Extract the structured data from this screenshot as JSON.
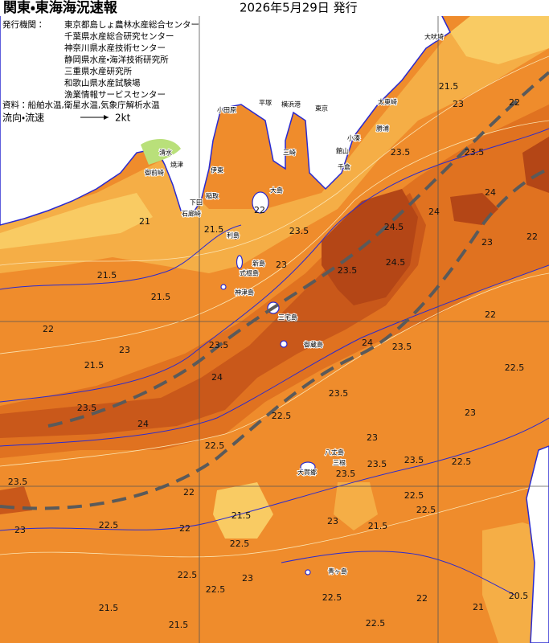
{
  "header": {
    "title": "関東・東海海況速報",
    "date": "2026年5月29日 発行"
  },
  "issuers": {
    "label": "発行機関：",
    "names": [
      "東京都島しょ農林水産総合センター",
      "千葉県水産総合研究センター",
      "神奈川県水産技術センター",
      "静岡県水産・海洋技術研究所",
      "三重県水産研究所",
      "和歌山県水産試験場",
      "漁業情報サービスセンター"
    ]
  },
  "source": "資料：船舶水温,衛星水温,気象庁解析水温",
  "legend": {
    "label": "流向・流速",
    "speed": "2kt"
  },
  "places": [
    "大吠埼",
    "太東崎",
    "勝浦",
    "小湊",
    "館山",
    "千倉",
    "東京",
    "横浜港",
    "三崎",
    "平塚",
    "小田原",
    "伊東",
    "稲取",
    "下田",
    "石廊崎",
    "焼津",
    "清水",
    "御前崎",
    "大島",
    "利島",
    "新島",
    "式根島",
    "神津島",
    "三宅島",
    "御蔵島",
    "八丈島",
    "三根",
    "大賀郷",
    "青ヶ島"
  ],
  "contour_labels": [
    "21.5",
    "23",
    "22",
    "23.5",
    "23.5",
    "24",
    "22",
    "21",
    "21.5",
    "22",
    "23",
    "23.5",
    "24.5",
    "24",
    "24.5",
    "23.5",
    "23",
    "21.5",
    "21.5",
    "22",
    "23",
    "23.5",
    "24",
    "24",
    "23.5",
    "22",
    "21.5",
    "22.5",
    "23.5",
    "24",
    "22.5",
    "23",
    "23.5",
    "22.5",
    "22",
    "23.5",
    "23",
    "22.5",
    "22.5",
    "23",
    "23.5",
    "23.5",
    "22.5",
    "22",
    "22.5",
    "23",
    "22.5",
    "21.5",
    "22.5",
    "21.5",
    "22.5",
    "21.5",
    "22.5",
    "21",
    "20.5",
    "22",
    "23",
    "23.5",
    "21.5",
    "22.5"
  ]
}
